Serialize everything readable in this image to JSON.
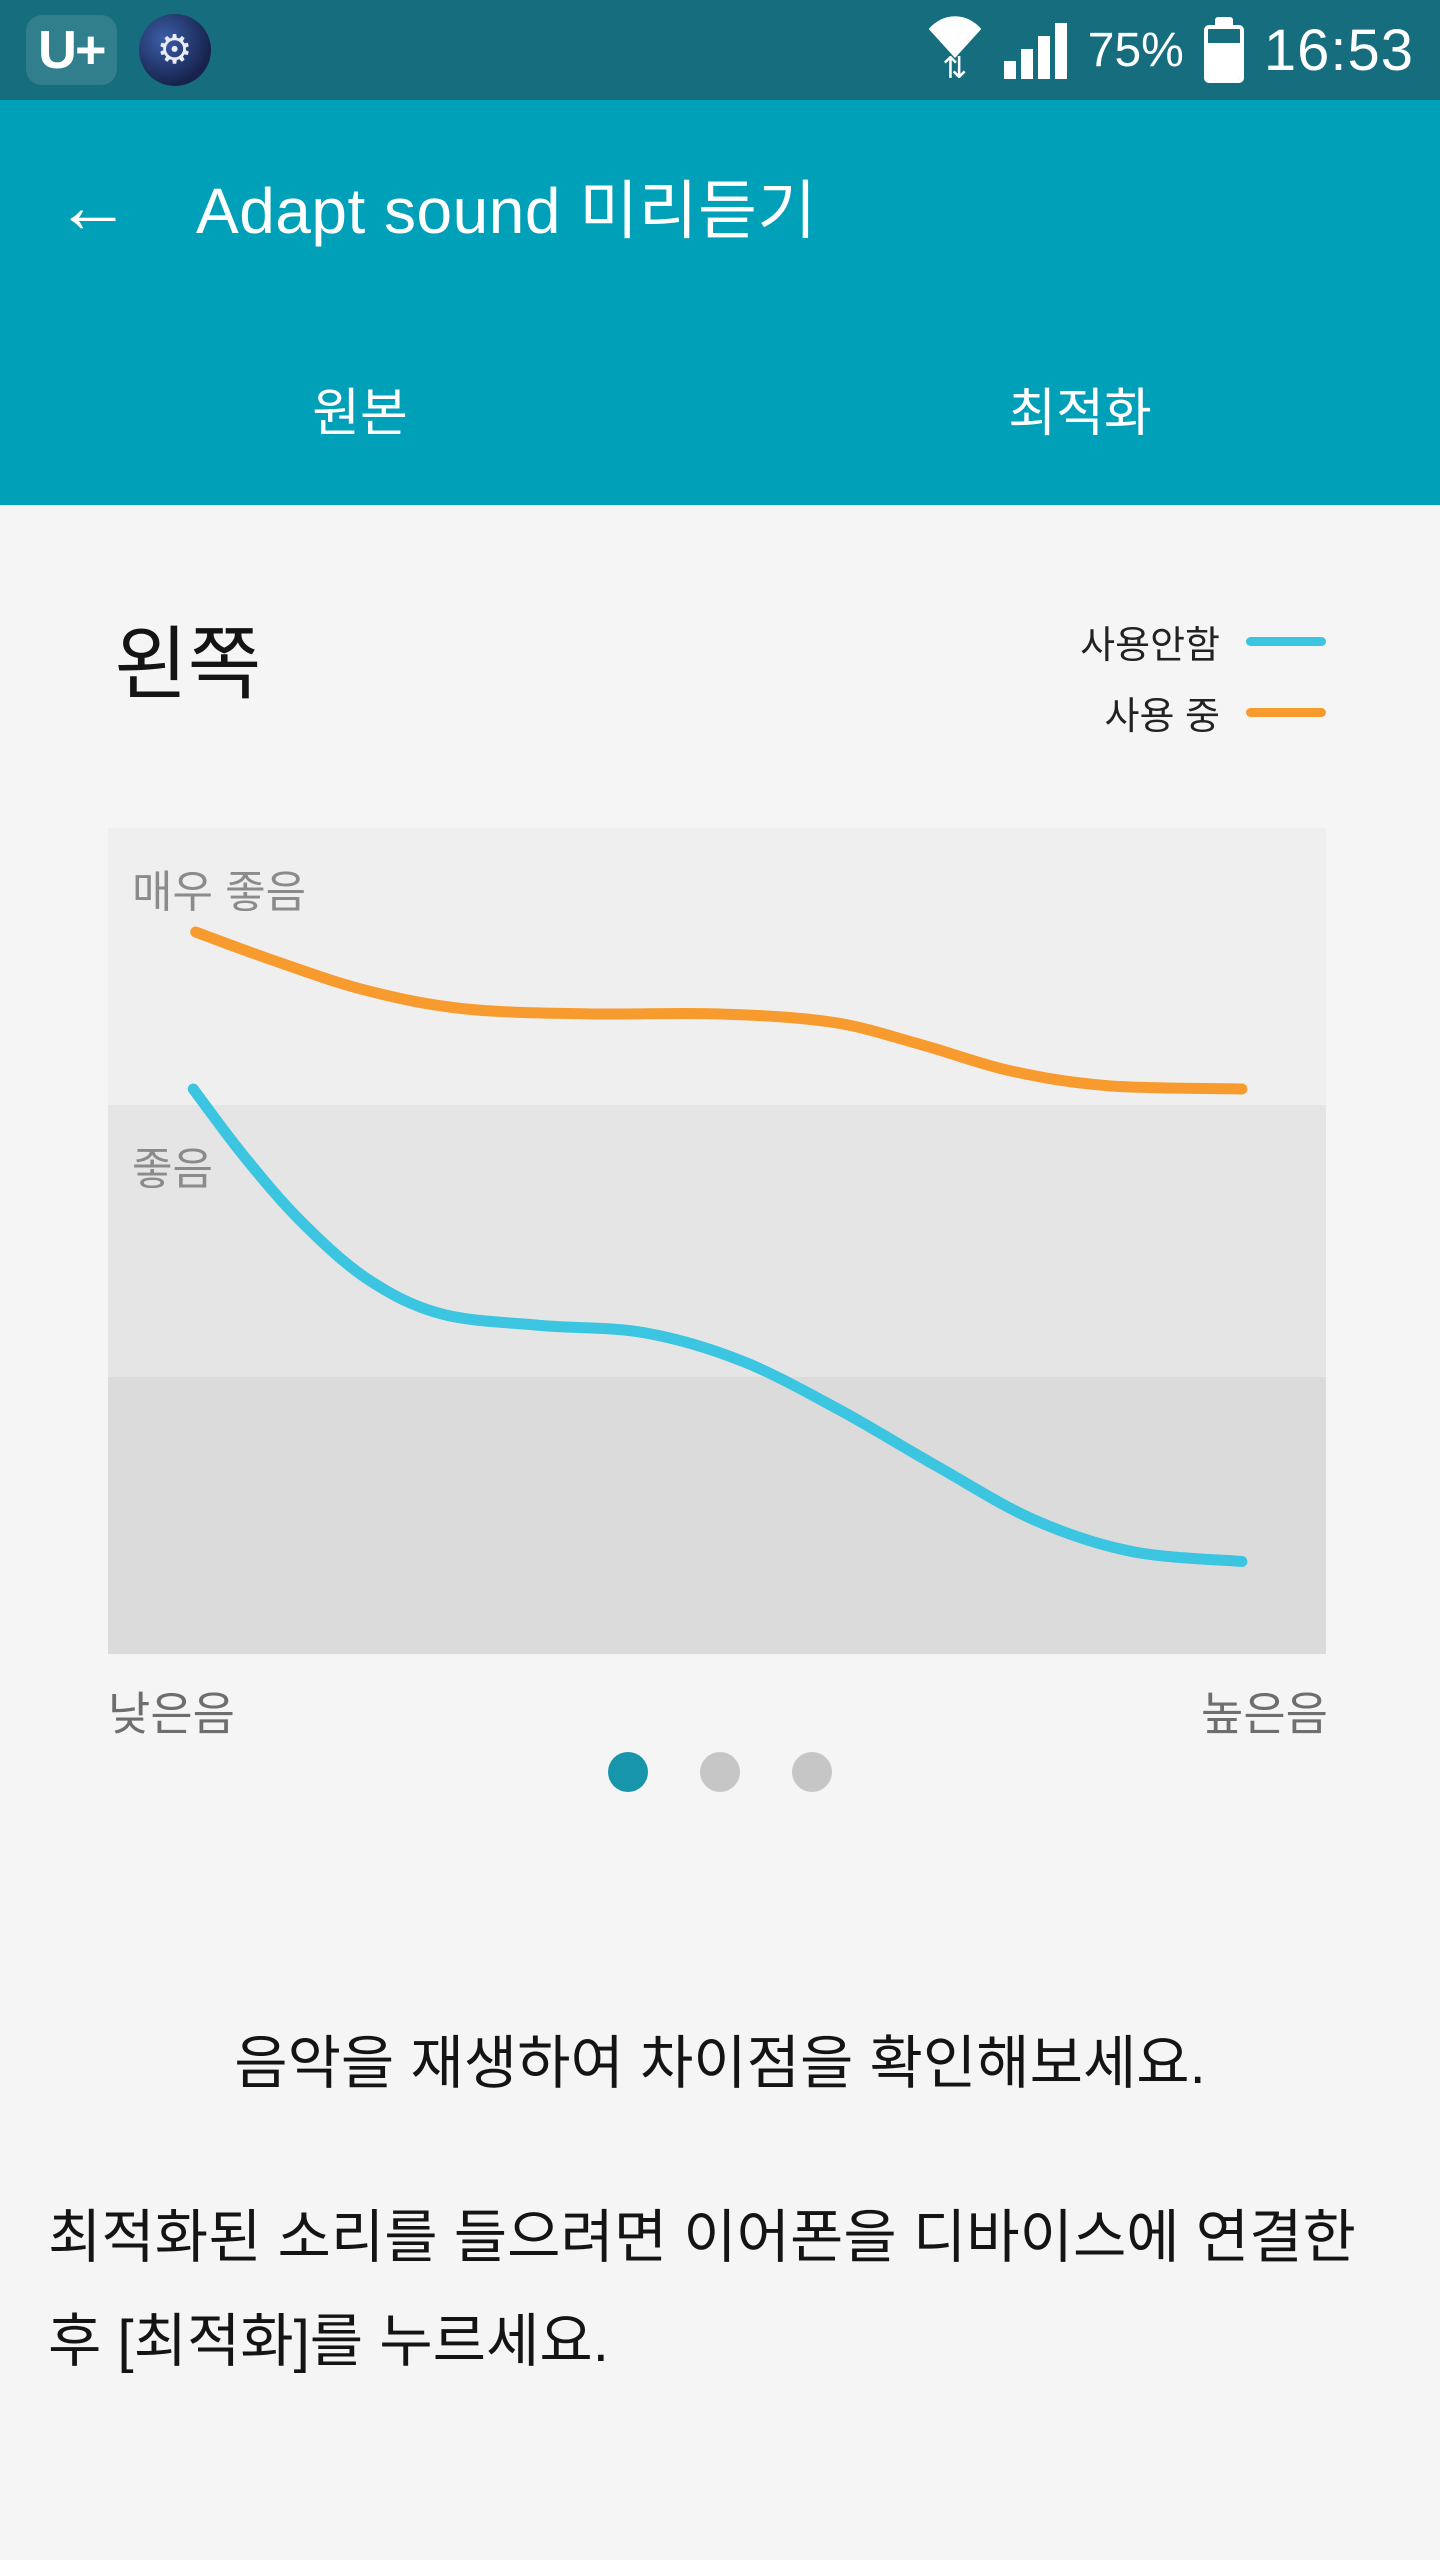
{
  "status_bar": {
    "carrier_logo": "U+",
    "time": "16:53",
    "battery_percent": "75%",
    "battery_level": 75
  },
  "icons": {
    "back": "←",
    "gear": "⚙",
    "wifi_arrows": "⇅"
  },
  "app_bar": {
    "title": "Adapt sound 미리듣기",
    "tabs": [
      {
        "label": "원본"
      },
      {
        "label": "최적화"
      }
    ]
  },
  "panel": {
    "channel_label": "왼쪽",
    "legend": [
      {
        "label": "사용안함",
        "color": "#3bc5e0"
      },
      {
        "label": "사용 중",
        "color": "#f79b2e"
      }
    ],
    "chart_data": {
      "type": "line",
      "y_band_labels": [
        "매우 좋음",
        "좋음"
      ],
      "x_axis": {
        "left_label": "낮은음",
        "right_label": "높은음"
      },
      "series": [
        {
          "id": "in-use",
          "name": "사용 중",
          "color": "#f79b2e",
          "points": [
            [
              0.072,
              0.126
            ],
            [
              0.139,
              0.162
            ],
            [
              0.213,
              0.197
            ],
            [
              0.293,
              0.219
            ],
            [
              0.393,
              0.225
            ],
            [
              0.5,
              0.225
            ],
            [
              0.594,
              0.235
            ],
            [
              0.667,
              0.262
            ],
            [
              0.741,
              0.294
            ],
            [
              0.821,
              0.312
            ],
            [
              0.931,
              0.316
            ]
          ]
        },
        {
          "id": "not-in-use",
          "name": "사용안함",
          "color": "#3bc5e0",
          "points": [
            [
              0.07,
              0.316
            ],
            [
              0.112,
              0.398
            ],
            [
              0.159,
              0.477
            ],
            [
              0.213,
              0.546
            ],
            [
              0.273,
              0.588
            ],
            [
              0.353,
              0.602
            ],
            [
              0.44,
              0.611
            ],
            [
              0.52,
              0.645
            ],
            [
              0.6,
              0.704
            ],
            [
              0.681,
              0.773
            ],
            [
              0.761,
              0.838
            ],
            [
              0.841,
              0.876
            ],
            [
              0.931,
              0.888
            ]
          ]
        }
      ]
    }
  },
  "pager": {
    "count": 3,
    "active": 0,
    "active_color": "#1795aa",
    "inactive_color": "#c6c6c6"
  },
  "instructions": {
    "line1": "음악을 재생하여 차이점을 확인해보세요.",
    "line2": "최적화된 소리를 들으려면 이어폰을 디바이스에 연결한 후 [최적화]를 누르세요."
  }
}
